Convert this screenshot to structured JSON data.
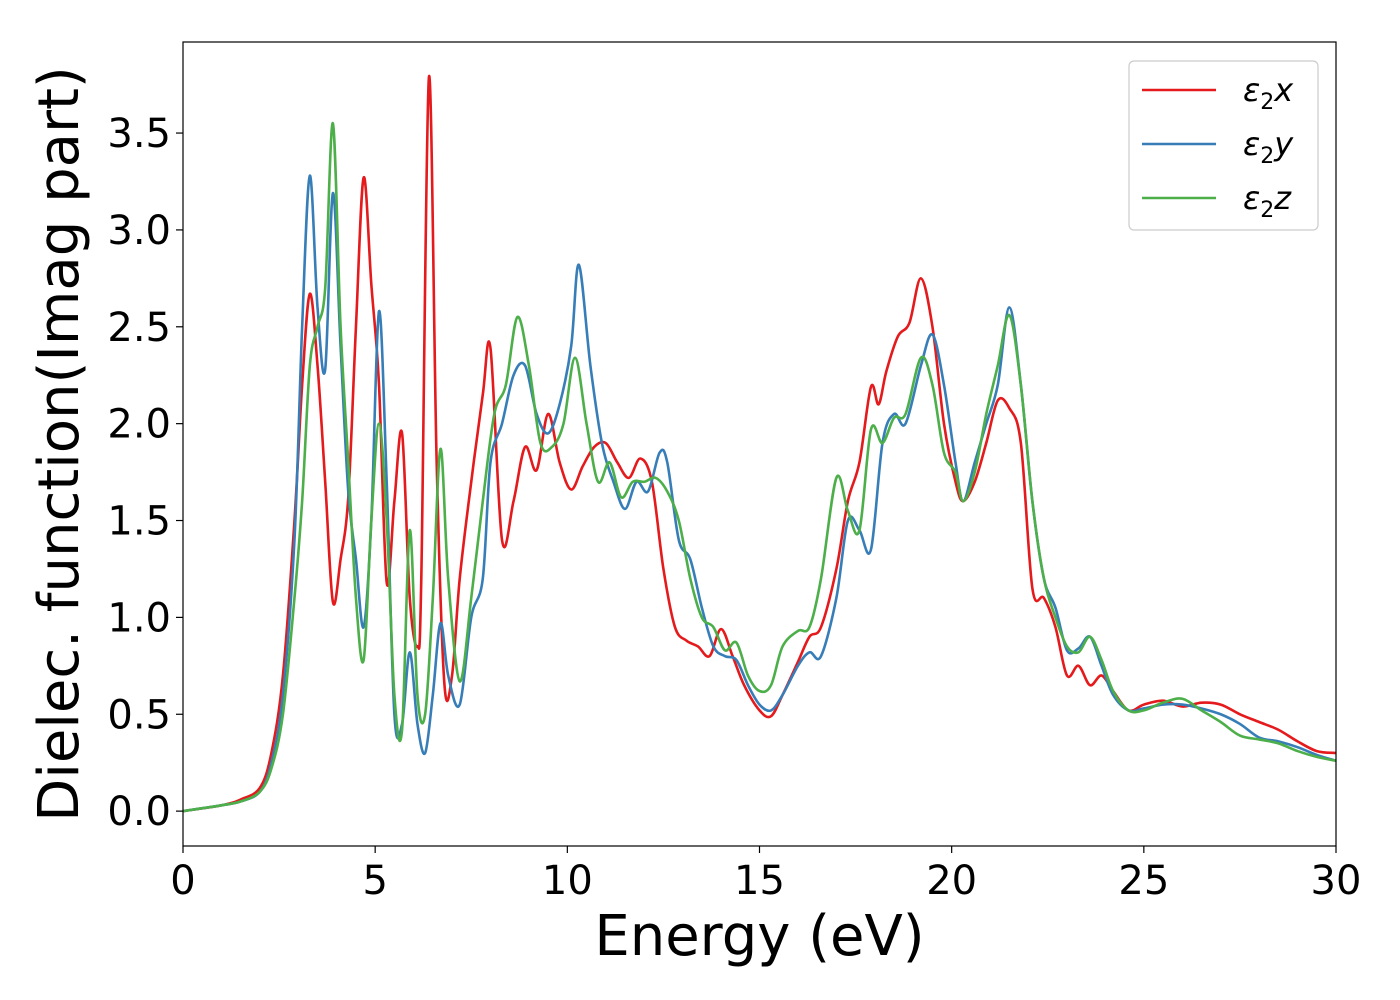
{
  "chart_data": {
    "type": "line",
    "xlabel": "Energy (eV)",
    "ylabel": "Dielec. function(Imag part)",
    "xlim": [
      0,
      30
    ],
    "ylim": [
      -0.18,
      3.97
    ],
    "xticks": [
      0,
      5,
      10,
      15,
      20,
      25,
      30
    ],
    "xtick_labels": [
      "0",
      "5",
      "10",
      "15",
      "20",
      "25",
      "30"
    ],
    "yticks": [
      0.0,
      0.5,
      1.0,
      1.5,
      2.0,
      2.5,
      3.0,
      3.5
    ],
    "ytick_labels": [
      "0.0",
      "0.5",
      "1.0",
      "1.5",
      "2.0",
      "2.5",
      "3.0",
      "3.5"
    ],
    "grid": false,
    "legend_position": "top-right",
    "series": [
      {
        "name": "ε2x",
        "legend_base": "ε",
        "legend_sub": "2",
        "legend_suffix": "x",
        "color": "#e41a1c",
        "x": [
          0,
          1,
          1.5,
          2,
          2.3,
          2.6,
          2.9,
          3.1,
          3.3,
          3.5,
          3.7,
          3.9,
          4.1,
          4.3,
          4.5,
          4.7,
          4.9,
          5.1,
          5.3,
          5.5,
          5.7,
          5.9,
          6.1,
          6.2,
          6.4,
          6.6,
          6.8,
          7.0,
          7.2,
          7.5,
          7.8,
          8.0,
          8.3,
          8.6,
          8.9,
          9.2,
          9.5,
          9.8,
          10.1,
          10.4,
          10.7,
          11.0,
          11.3,
          11.6,
          11.9,
          12.2,
          12.5,
          12.8,
          13.1,
          13.4,
          13.7,
          14.0,
          14.3,
          14.6,
          15.0,
          15.3,
          15.6,
          16.0,
          16.3,
          16.6,
          17.0,
          17.3,
          17.6,
          17.9,
          18.1,
          18.3,
          18.6,
          18.9,
          19.2,
          19.5,
          19.8,
          20.1,
          20.3,
          20.6,
          20.9,
          21.2,
          21.5,
          21.8,
          22.1,
          22.4,
          22.7,
          23.0,
          23.3,
          23.6,
          23.9,
          24.2,
          24.6,
          25.0,
          25.5,
          26.0,
          26.5,
          27.0,
          27.5,
          28.0,
          28.5,
          29.0,
          29.5,
          30.0
        ],
        "y": [
          0,
          0.03,
          0.06,
          0.12,
          0.3,
          0.7,
          1.5,
          2.2,
          2.67,
          2.3,
          1.7,
          1.08,
          1.3,
          1.62,
          2.5,
          3.27,
          2.72,
          2.2,
          1.18,
          1.6,
          1.95,
          1.1,
          0.85,
          1.2,
          3.79,
          1.8,
          0.66,
          0.7,
          1.2,
          1.7,
          2.15,
          2.39,
          1.4,
          1.6,
          1.88,
          1.76,
          2.05,
          1.8,
          1.66,
          1.78,
          1.88,
          1.9,
          1.8,
          1.72,
          1.82,
          1.7,
          1.25,
          0.95,
          0.88,
          0.85,
          0.8,
          0.94,
          0.8,
          0.65,
          0.52,
          0.49,
          0.6,
          0.77,
          0.9,
          0.95,
          1.25,
          1.6,
          1.8,
          2.19,
          2.1,
          2.27,
          2.45,
          2.52,
          2.75,
          2.5,
          2.0,
          1.7,
          1.6,
          1.7,
          1.9,
          2.12,
          2.08,
          1.9,
          1.15,
          1.1,
          0.95,
          0.7,
          0.75,
          0.65,
          0.7,
          0.62,
          0.52,
          0.55,
          0.57,
          0.54,
          0.56,
          0.55,
          0.5,
          0.46,
          0.42,
          0.36,
          0.31,
          0.3
        ]
      },
      {
        "name": "ε2y",
        "legend_base": "ε",
        "legend_sub": "2",
        "legend_suffix": "y",
        "color": "#377eb8",
        "x": [
          0,
          1,
          1.5,
          2,
          2.3,
          2.6,
          2.9,
          3.1,
          3.3,
          3.5,
          3.7,
          3.9,
          4.1,
          4.3,
          4.5,
          4.7,
          4.9,
          5.1,
          5.3,
          5.5,
          5.7,
          5.9,
          6.1,
          6.3,
          6.5,
          6.7,
          6.9,
          7.2,
          7.5,
          7.8,
          8.0,
          8.3,
          8.6,
          8.9,
          9.2,
          9.5,
          9.8,
          10.1,
          10.3,
          10.6,
          10.9,
          11.2,
          11.5,
          11.8,
          12.1,
          12.4,
          12.6,
          12.9,
          13.2,
          13.5,
          13.8,
          14.1,
          14.4,
          14.7,
          15.0,
          15.3,
          15.6,
          16.0,
          16.3,
          16.6,
          17.0,
          17.3,
          17.6,
          17.9,
          18.2,
          18.5,
          18.8,
          19.2,
          19.5,
          19.8,
          20.1,
          20.3,
          20.6,
          20.9,
          21.2,
          21.5,
          21.8,
          22.1,
          22.4,
          22.7,
          23.0,
          23.3,
          23.6,
          23.9,
          24.2,
          24.6,
          25.0,
          25.5,
          26.0,
          26.5,
          27.0,
          27.5,
          28.0,
          28.5,
          29.0,
          29.5,
          30.0
        ],
        "y": [
          0,
          0.03,
          0.05,
          0.1,
          0.25,
          0.6,
          1.4,
          2.5,
          3.28,
          2.6,
          2.28,
          3.19,
          2.4,
          1.65,
          1.3,
          0.95,
          1.5,
          2.58,
          1.7,
          0.5,
          0.45,
          0.82,
          0.45,
          0.3,
          0.6,
          0.97,
          0.7,
          0.55,
          1.0,
          1.2,
          1.8,
          2.0,
          2.25,
          2.3,
          2.05,
          1.95,
          2.1,
          2.4,
          2.82,
          2.3,
          1.9,
          1.7,
          1.56,
          1.7,
          1.65,
          1.85,
          1.8,
          1.4,
          1.3,
          1.05,
          0.85,
          0.8,
          0.78,
          0.65,
          0.55,
          0.52,
          0.6,
          0.75,
          0.82,
          0.8,
          1.1,
          1.5,
          1.45,
          1.35,
          1.9,
          2.05,
          2.0,
          2.3,
          2.46,
          2.2,
          1.8,
          1.6,
          1.8,
          2.0,
          2.2,
          2.6,
          2.2,
          1.6,
          1.2,
          1.05,
          0.83,
          0.84,
          0.9,
          0.75,
          0.6,
          0.52,
          0.53,
          0.55,
          0.55,
          0.53,
          0.5,
          0.45,
          0.38,
          0.36,
          0.33,
          0.29,
          0.26
        ]
      },
      {
        "name": "ε2z",
        "legend_base": "ε",
        "legend_sub": "2",
        "legend_suffix": "z",
        "color": "#4daf4a",
        "x": [
          0,
          1,
          1.5,
          2,
          2.3,
          2.6,
          2.9,
          3.1,
          3.3,
          3.5,
          3.7,
          3.9,
          4.1,
          4.3,
          4.5,
          4.7,
          4.9,
          5.1,
          5.3,
          5.5,
          5.7,
          5.9,
          6.1,
          6.3,
          6.5,
          6.7,
          6.9,
          7.2,
          7.5,
          7.8,
          8.1,
          8.4,
          8.7,
          9.0,
          9.3,
          9.6,
          9.9,
          10.2,
          10.5,
          10.8,
          11.1,
          11.4,
          11.7,
          12.0,
          12.3,
          12.6,
          12.9,
          13.2,
          13.5,
          13.8,
          14.1,
          14.4,
          14.7,
          15.0,
          15.3,
          15.6,
          16.0,
          16.3,
          16.6,
          17.0,
          17.3,
          17.6,
          17.9,
          18.2,
          18.5,
          18.8,
          19.2,
          19.5,
          19.8,
          20.1,
          20.3,
          20.6,
          20.9,
          21.2,
          21.5,
          21.8,
          22.1,
          22.4,
          22.7,
          23.0,
          23.3,
          23.6,
          23.9,
          24.2,
          24.6,
          25.0,
          25.5,
          26.0,
          26.5,
          27.0,
          27.5,
          28.0,
          28.5,
          29.0,
          29.5,
          30.0
        ],
        "y": [
          0,
          0.03,
          0.05,
          0.1,
          0.22,
          0.5,
          1.1,
          1.6,
          2.3,
          2.5,
          2.7,
          3.55,
          2.5,
          1.8,
          1.1,
          0.78,
          1.5,
          2.0,
          1.5,
          0.6,
          0.42,
          1.45,
          0.6,
          0.5,
          1.1,
          1.87,
          1.2,
          0.67,
          1.1,
          1.6,
          2.05,
          2.2,
          2.55,
          2.3,
          1.9,
          1.88,
          2.0,
          2.34,
          2.0,
          1.7,
          1.8,
          1.62,
          1.7,
          1.7,
          1.72,
          1.65,
          1.5,
          1.2,
          1.0,
          0.95,
          0.83,
          0.87,
          0.7,
          0.62,
          0.65,
          0.85,
          0.93,
          0.95,
          1.2,
          1.72,
          1.55,
          1.45,
          1.97,
          1.9,
          2.03,
          2.05,
          2.34,
          2.2,
          1.85,
          1.75,
          1.6,
          1.75,
          2.05,
          2.3,
          2.56,
          2.2,
          1.6,
          1.2,
          1.0,
          0.85,
          0.82,
          0.9,
          0.78,
          0.62,
          0.52,
          0.52,
          0.56,
          0.58,
          0.52,
          0.46,
          0.39,
          0.37,
          0.35,
          0.31,
          0.28,
          0.26
        ]
      }
    ]
  }
}
